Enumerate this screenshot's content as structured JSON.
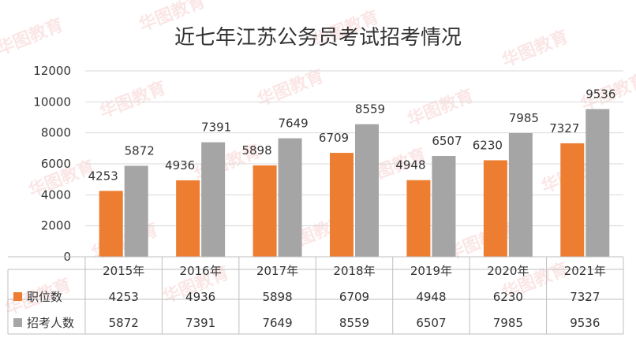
{
  "chart_data": {
    "type": "bar",
    "title": "近七年江苏公务员考试招考情况",
    "categories": [
      "2015年",
      "2016年",
      "2017年",
      "2018年",
      "2019年",
      "2020年",
      "2021年"
    ],
    "series": [
      {
        "name": "职位数",
        "values": [
          4253,
          4936,
          5898,
          6709,
          4948,
          6230,
          7327
        ],
        "color": "#ed7d31"
      },
      {
        "name": "招考人数",
        "values": [
          5872,
          7391,
          7649,
          8559,
          6507,
          7985,
          9536
        ],
        "color": "#a5a5a5"
      }
    ],
    "ylim": [
      0,
      12000
    ],
    "yticks": [
      "0",
      "2000",
      "4000",
      "6000",
      "8000",
      "10000",
      "12000"
    ],
    "grid": true,
    "legend": "data-table"
  },
  "watermark": "华图教育"
}
